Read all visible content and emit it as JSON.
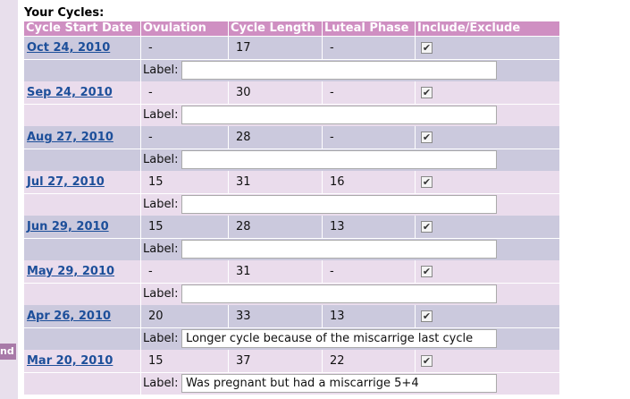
{
  "sidebar_fragment": "nd",
  "title": "Your Cycles:",
  "table": {
    "headers": [
      "Cycle Start Date",
      "Ovulation",
      "Cycle Length",
      "Luteal Phase",
      "Include/Exclude"
    ],
    "label_caption": "Label:",
    "rows": [
      {
        "date": "Oct 24, 2010",
        "ovulation": "-",
        "cycle_length": "17",
        "luteal_phase": "-",
        "included": true,
        "label": ""
      },
      {
        "date": "Sep 24, 2010",
        "ovulation": "-",
        "cycle_length": "30",
        "luteal_phase": "-",
        "included": true,
        "label": ""
      },
      {
        "date": "Aug 27, 2010",
        "ovulation": "-",
        "cycle_length": "28",
        "luteal_phase": "-",
        "included": true,
        "label": ""
      },
      {
        "date": "Jul 27, 2010",
        "ovulation": "15",
        "cycle_length": "31",
        "luteal_phase": "16",
        "included": true,
        "label": ""
      },
      {
        "date": "Jun 29, 2010",
        "ovulation": "15",
        "cycle_length": "28",
        "luteal_phase": "13",
        "included": true,
        "label": ""
      },
      {
        "date": "May 29, 2010",
        "ovulation": "-",
        "cycle_length": "31",
        "luteal_phase": "-",
        "included": true,
        "label": ""
      },
      {
        "date": "Apr 26, 2010",
        "ovulation": "20",
        "cycle_length": "33",
        "luteal_phase": "13",
        "included": true,
        "label": "Longer cycle because of the miscarrige last cycle"
      },
      {
        "date": "Mar 20, 2010",
        "ovulation": "15",
        "cycle_length": "37",
        "luteal_phase": "22",
        "included": true,
        "label": "Was pregnant but had a miscarrige 5+4"
      }
    ]
  }
}
